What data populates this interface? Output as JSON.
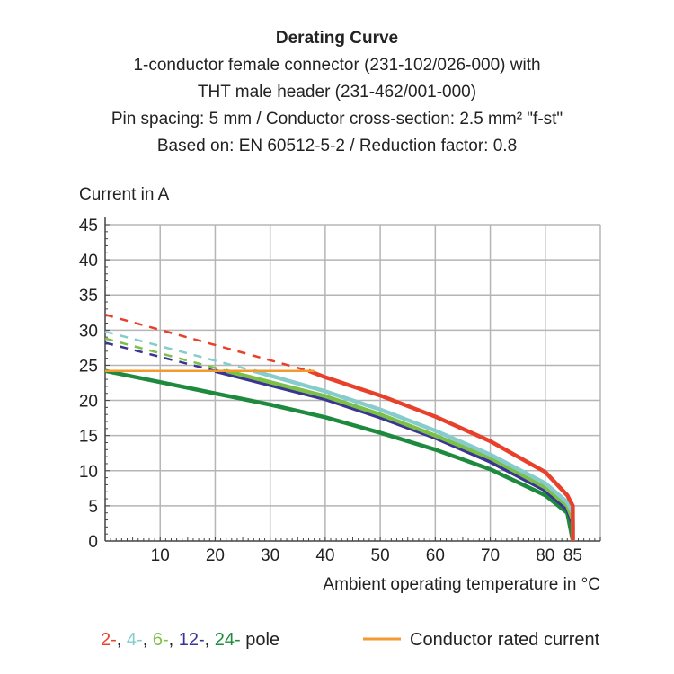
{
  "chart_data": {
    "type": "line",
    "title": "Derating Curve",
    "subtitle": [
      "1-conductor female connector (231-102/026-000) with",
      "THT male header (231-462/001-000)",
      "Pin spacing: 5 mm / Conductor cross-section: 2.5 mm² \"f-st\"",
      "Based on: EN 60512-5-2 / Reduction factor: 0.8"
    ],
    "xlabel": "Ambient operating temperature in °C",
    "ylabel": "Current in A",
    "xlim": [
      0,
      90
    ],
    "ylim": [
      0,
      45
    ],
    "xticks": [
      10,
      20,
      30,
      40,
      50,
      60,
      70,
      80,
      85
    ],
    "yticks": [
      0,
      5,
      10,
      15,
      20,
      25,
      30,
      35,
      40,
      45
    ],
    "grid": true,
    "legend": {
      "placement": "bottom",
      "poles_parts": [
        {
          "text": "2-",
          "color": "#e8402a"
        },
        {
          "text": ", ",
          "color": "#222222"
        },
        {
          "text": "4-",
          "color": "#86cccc"
        },
        {
          "text": ", ",
          "color": "#222222"
        },
        {
          "text": "6-",
          "color": "#7cc04a"
        },
        {
          "text": ", ",
          "color": "#222222"
        },
        {
          "text": "12-",
          "color": "#3a3592"
        },
        {
          "text": ", ",
          "color": "#222222"
        },
        {
          "text": "24-",
          "color": "#1e8a3e"
        },
        {
          "text": " pole",
          "color": "#222222"
        }
      ],
      "rated_label": "Conductor rated current",
      "rated_color": "#f39a2e"
    },
    "series": [
      {
        "name": "2-",
        "color": "#e8402a",
        "dashed": [
          [
            0,
            32.2
          ],
          [
            37,
            24.2
          ]
        ],
        "solid": [
          [
            37,
            24.2
          ],
          [
            40,
            23.3
          ],
          [
            50,
            20.7
          ],
          [
            60,
            17.7
          ],
          [
            70,
            14.2
          ],
          [
            80,
            9.8
          ],
          [
            84,
            6.5
          ],
          [
            85,
            5
          ],
          [
            85,
            0
          ]
        ]
      },
      {
        "name": "4-",
        "color": "#86cccc",
        "dashed": [
          [
            0,
            29.8
          ],
          [
            27,
            24.2
          ]
        ],
        "solid": [
          [
            27,
            24.2
          ],
          [
            40,
            21.3
          ],
          [
            50,
            18.7
          ],
          [
            60,
            15.7
          ],
          [
            70,
            12.3
          ],
          [
            80,
            8.2
          ],
          [
            84,
            5.5
          ],
          [
            85,
            4
          ],
          [
            85,
            0
          ]
        ]
      },
      {
        "name": "6-",
        "color": "#7cc04a",
        "dashed": [
          [
            0,
            28.8
          ],
          [
            22,
            24.2
          ]
        ],
        "solid": [
          [
            22,
            24.2
          ],
          [
            40,
            20.6
          ],
          [
            50,
            18
          ],
          [
            60,
            15
          ],
          [
            70,
            11.8
          ],
          [
            80,
            7.6
          ],
          [
            84,
            5
          ],
          [
            85,
            3
          ],
          [
            85,
            0
          ]
        ]
      },
      {
        "name": "12-",
        "color": "#3a3592",
        "dashed": [
          [
            0,
            28.2
          ],
          [
            20,
            24.2
          ]
        ],
        "solid": [
          [
            20,
            24.2
          ],
          [
            40,
            20.2
          ],
          [
            50,
            17.6
          ],
          [
            60,
            14.7
          ],
          [
            70,
            11.3
          ],
          [
            80,
            7.2
          ],
          [
            84,
            4.5
          ],
          [
            85,
            2.5
          ],
          [
            85,
            0
          ]
        ]
      },
      {
        "name": "24-",
        "color": "#1e8a3e",
        "dashed": [],
        "solid": [
          [
            0,
            24.2
          ],
          [
            10,
            22.6
          ],
          [
            20,
            21
          ],
          [
            30,
            19.4
          ],
          [
            40,
            17.6
          ],
          [
            50,
            15.4
          ],
          [
            60,
            13
          ],
          [
            70,
            10.2
          ],
          [
            80,
            6.5
          ],
          [
            84,
            4
          ],
          [
            85,
            0
          ]
        ]
      },
      {
        "name": "Conductor rated current",
        "color": "#f39a2e",
        "dashed": [],
        "solid": [
          [
            0,
            24.2
          ],
          [
            38,
            24.2
          ]
        ]
      }
    ]
  }
}
